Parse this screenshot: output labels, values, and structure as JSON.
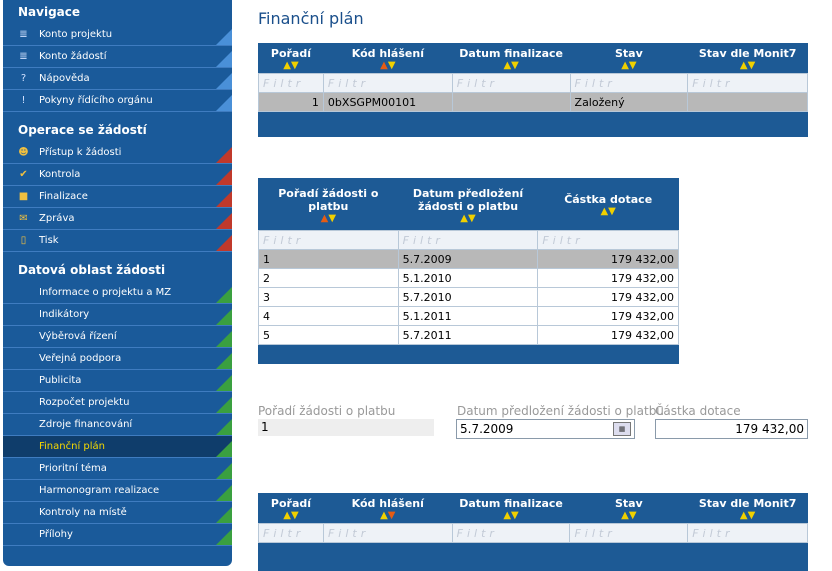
{
  "page_title": "Finanční plán",
  "sidebar": {
    "sections": [
      {
        "title": "Navigace",
        "items": [
          {
            "label": "Konto projektu",
            "icon": "list-icon",
            "glyph": "≣"
          },
          {
            "label": "Konto žádostí",
            "icon": "list-icon",
            "glyph": "≣"
          },
          {
            "label": "Nápověda",
            "icon": "help-icon",
            "glyph": "?"
          },
          {
            "label": "Pokyny řídícího orgánu",
            "icon": "info-icon",
            "glyph": "!"
          }
        ]
      },
      {
        "title": "Operace se žádostí",
        "items": [
          {
            "label": "Přístup k žádosti",
            "icon": "users-icon",
            "glyph": "☻"
          },
          {
            "label": "Kontrola",
            "icon": "check-icon",
            "glyph": "✔"
          },
          {
            "label": "Finalizace",
            "icon": "lock-icon",
            "glyph": "■"
          },
          {
            "label": "Zpráva",
            "icon": "mail-icon",
            "glyph": "✉"
          },
          {
            "label": "Tisk",
            "icon": "document-icon",
            "glyph": "▯"
          }
        ]
      },
      {
        "title": "Datová oblast žádosti",
        "items": [
          {
            "label": "Informace o projektu a MZ"
          },
          {
            "label": "Indikátory"
          },
          {
            "label": "Výběrová řízení"
          },
          {
            "label": "Veřejná podpora"
          },
          {
            "label": "Publicita"
          },
          {
            "label": "Rozpočet projektu"
          },
          {
            "label": "Zdroje financování"
          },
          {
            "label": "Finanční plán",
            "active": true
          },
          {
            "label": "Prioritní téma"
          },
          {
            "label": "Harmonogram realizace"
          },
          {
            "label": "Kontroly na místě"
          },
          {
            "label": "Přílohy"
          }
        ]
      }
    ]
  },
  "grid1": {
    "headers": [
      "Pořadí",
      "Kód hlášení",
      "Datum finalizace",
      "Stav",
      "Stav dle Monit7"
    ],
    "filter_text": "Filtr",
    "rows": [
      [
        "1",
        "0bXSGPM00101",
        "",
        "Založený",
        ""
      ]
    ]
  },
  "grid2": {
    "headers": [
      "Pořadí žádosti o platbu",
      "Datum předložení žádosti o platbu",
      "Částka dotace"
    ],
    "filter_text": "Filtr",
    "rows": [
      [
        "1",
        "5.7.2009",
        "179 432,00"
      ],
      [
        "2",
        "5.1.2010",
        "179 432,00"
      ],
      [
        "3",
        "5.7.2010",
        "179 432,00"
      ],
      [
        "4",
        "5.1.2011",
        "179 432,00"
      ],
      [
        "5",
        "5.7.2011",
        "179 432,00"
      ]
    ]
  },
  "form": {
    "order_label": "Pořadí žádosti o platbu",
    "order_value": "1",
    "date_label": "Datum předložení žádosti o platbu",
    "date_value": "5.7.2009",
    "amount_label": "Částka dotace",
    "amount_value": "179 432,00"
  },
  "grid3": {
    "headers": [
      "Pořadí",
      "Kód hlášení",
      "Datum finalizace",
      "Stav",
      "Stav dle Monit7"
    ],
    "filter_text": "Filtr"
  }
}
